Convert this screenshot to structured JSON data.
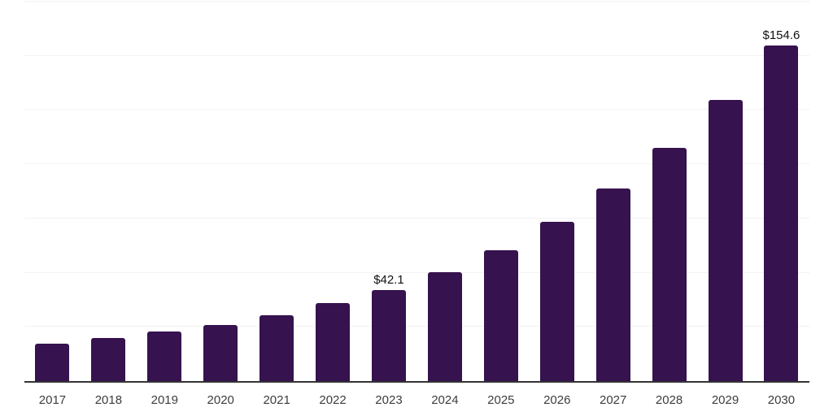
{
  "chart_data": {
    "type": "bar",
    "title": "",
    "xlabel": "",
    "ylabel": "",
    "categories": [
      "2017",
      "2018",
      "2019",
      "2020",
      "2021",
      "2022",
      "2023",
      "2024",
      "2025",
      "2026",
      "2027",
      "2028",
      "2029",
      "2030"
    ],
    "values": [
      17.2,
      19.9,
      22.9,
      25.9,
      30.4,
      36.0,
      42.1,
      50.3,
      60.3,
      73.4,
      88.8,
      107.5,
      129.6,
      154.6
    ],
    "data_labels": [
      {
        "index": 6,
        "text": "$42.1"
      },
      {
        "index": 13,
        "text": "$154.6"
      }
    ],
    "value_prefix": "$",
    "ylim": [
      0,
      175
    ],
    "gridline_step": 25,
    "grid": true,
    "legend": "none",
    "colors": {
      "bar": "#36124E",
      "gridline": "#F2F2F2",
      "axis_line": "#333333",
      "tick_label": "#3D3D3D",
      "data_label": "#111111",
      "background": "#FFFFFF"
    }
  }
}
